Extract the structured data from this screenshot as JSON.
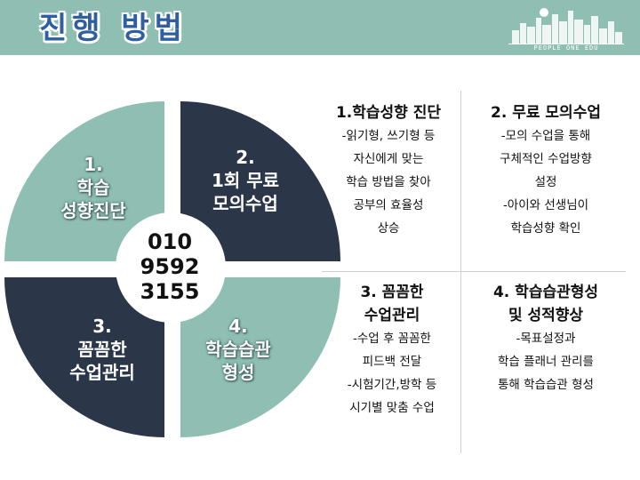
{
  "header": {
    "title": "진행 방법",
    "logo_text": "PEOPLE ONE EDU",
    "colors": {
      "bar": "#8fbfb3",
      "title": "#2f5f9e"
    }
  },
  "pie": {
    "colors": {
      "light": "#8fbfb3",
      "dark": "#2b3649"
    },
    "center": [
      "010",
      "9592",
      "3155"
    ],
    "quadrants": [
      {
        "label": "1.\n학습\n성향진단"
      },
      {
        "label": "2.\n1회 무료\n모의수업"
      },
      {
        "label": "3.\n꼼꼼한\n수업관리"
      },
      {
        "label": "4.\n학습습관\n형성"
      }
    ]
  },
  "blocks": [
    {
      "title": [
        "1.학습성향 진단"
      ],
      "lines": [
        "-읽기형, 쓰기형 등",
        "자신에게 맞는",
        "학습 방법을 찾아",
        "공부의 효율성",
        "상승"
      ]
    },
    {
      "title": [
        "2. 무료 모의수업"
      ],
      "lines": [
        "-모의 수업을 통해",
        "구체적인 수업방향",
        "설정",
        "-아이와 선생님이",
        "학습성향 확인"
      ]
    },
    {
      "title": [
        "3. 꼼꼼한",
        "수업관리"
      ],
      "lines": [
        "-수업 후 꼼꼼한",
        "피드백 전달",
        "-시험기간,방학 등",
        "시기별 맞춤 수업"
      ]
    },
    {
      "title": [
        "4. 학습습관형성",
        "및 성적향상"
      ],
      "lines": [
        "-목표설정과",
        "학습 플래너 관리를",
        "통해 학습습관 형성"
      ]
    }
  ]
}
